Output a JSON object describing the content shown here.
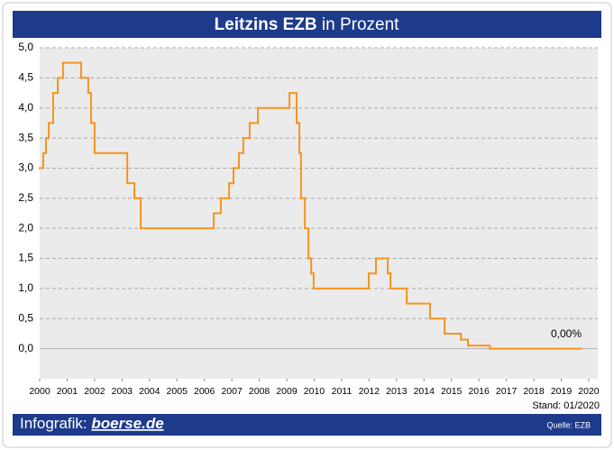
{
  "chart_data": {
    "type": "step",
    "title_parts": [
      "Leitzins EZB",
      "in Prozent"
    ],
    "note": "Stand: 01/2020",
    "source": "Quelle: EZB",
    "brand_parts": [
      "Infografik:",
      "boerse.de"
    ],
    "x": [
      2000,
      2000.13,
      2000.23,
      2000.33,
      2000.49,
      2000.66,
      2000.85,
      2001.51,
      2001.77,
      2001.87,
      2002.0,
      2003.19,
      2003.45,
      2003.68,
      2006.34,
      2006.6,
      2006.9,
      2007.06,
      2007.26,
      2007.42,
      2007.65,
      2007.95,
      2009.1,
      2009.36,
      2009.46,
      2009.52,
      2009.66,
      2009.79,
      2009.89,
      2009.98,
      2011.99,
      2012.25,
      2012.68,
      2012.78,
      2013.37,
      2014.22,
      2014.75,
      2015.34,
      2015.6,
      2016.4,
      2019.74
    ],
    "series": [
      {
        "name": "Leitzins",
        "color": "#f7941d",
        "values": [
          3.0,
          3.25,
          3.5,
          3.75,
          4.25,
          4.5,
          4.75,
          4.5,
          4.25,
          3.75,
          3.25,
          2.75,
          2.5,
          2.0,
          2.25,
          2.5,
          2.75,
          3.0,
          3.25,
          3.5,
          3.75,
          4.0,
          4.25,
          3.75,
          3.25,
          2.5,
          2.0,
          1.5,
          1.25,
          1.0,
          1.25,
          1.5,
          1.25,
          1.0,
          0.75,
          0.5,
          0.25,
          0.15,
          0.05,
          0.0,
          0.0
        ],
        "value_labels": [
          null,
          null,
          null,
          null,
          null,
          null,
          null,
          null,
          null,
          null,
          null,
          null,
          null,
          null,
          null,
          null,
          null,
          null,
          null,
          null,
          null,
          null,
          null,
          null,
          null,
          null,
          null,
          null,
          null,
          null,
          null,
          null,
          null,
          null,
          null,
          null,
          null,
          null,
          null,
          null,
          "0,00%"
        ]
      }
    ],
    "xlim": [
      2000,
      2020.33
    ],
    "xticks": [
      2000,
      2001,
      2002,
      2003,
      2004,
      2005,
      2006,
      2007,
      2008,
      2009,
      2010,
      2011,
      2012,
      2013,
      2014,
      2015,
      2016,
      2017,
      2018,
      2019,
      2020
    ],
    "ylim": [
      -0.5,
      5.0
    ],
    "yticks": [
      {
        "value": 0,
        "label": "0,0"
      },
      {
        "value": 0.5,
        "label": "0,5"
      },
      {
        "value": 1,
        "label": "1,0"
      },
      {
        "value": 1.5,
        "label": "1,5"
      },
      {
        "value": 2,
        "label": "2,0"
      },
      {
        "value": 2.5,
        "label": "2,5"
      },
      {
        "value": 3,
        "label": "3,0"
      },
      {
        "value": 3.5,
        "label": "3,5"
      },
      {
        "value": 4,
        "label": "4,0"
      },
      {
        "value": 4.5,
        "label": "4,5"
      },
      {
        "value": 5,
        "label": "5,0"
      }
    ],
    "grid": true
  }
}
